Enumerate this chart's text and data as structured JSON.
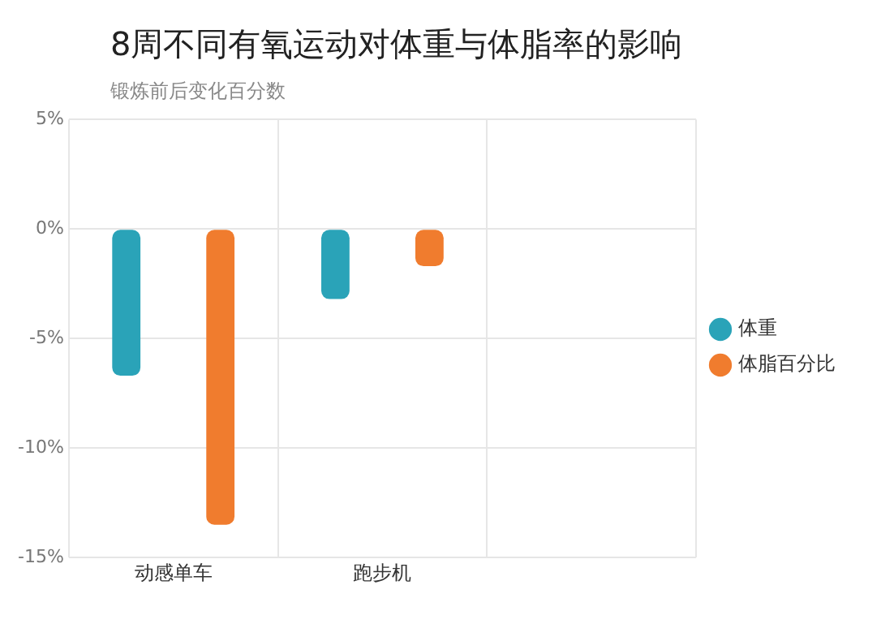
{
  "chart_data": {
    "type": "bar",
    "title": "8周不同有氧运动对体重与体脂率的影响",
    "ylabel": "锻炼前后变化百分数",
    "categories": [
      "动感单车",
      "跑步机",
      null
    ],
    "series": [
      {
        "name": "体重",
        "color": "#2aa3b8",
        "values": [
          -6.7,
          -3.2,
          null
        ]
      },
      {
        "name": "体脂百分比",
        "color": "#f07c2e",
        "values": [
          -13.5,
          -1.7,
          null
        ]
      }
    ],
    "ylim": [
      -15,
      5
    ],
    "yticks": [
      {
        "value": 5,
        "label": "5%"
      },
      {
        "value": 0,
        "label": "0%"
      },
      {
        "value": -5,
        "label": "-5%"
      },
      {
        "value": -10,
        "label": "-10%"
      },
      {
        "value": -15,
        "label": "-15%"
      }
    ],
    "grid": true,
    "legend": "right"
  }
}
